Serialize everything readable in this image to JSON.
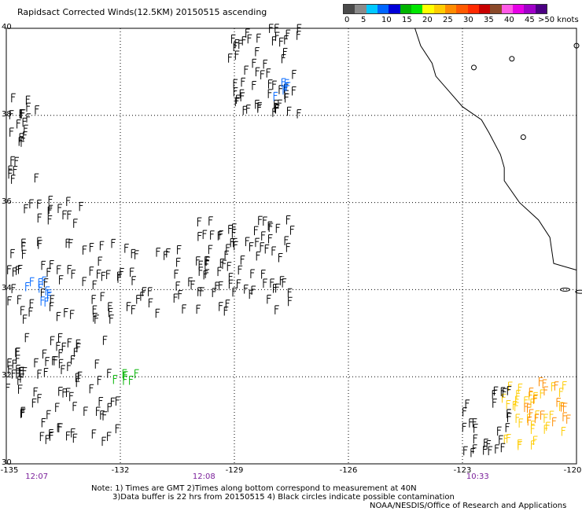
{
  "title": "Rapidsact Corrected Winds(12.5KM) 20150515 ascending",
  "legend": {
    "colors": [
      "#4a4a4a",
      "#8a8a8a",
      "#00c8ff",
      "#0066ff",
      "#0000d8",
      "#00b400",
      "#00e600",
      "#ffff00",
      "#ffcc00",
      "#ff8c00",
      "#ff5a00",
      "#ff2a00",
      "#c80000",
      "#8b4a2a",
      "#ff5ae6",
      "#e600e6",
      "#a000c8",
      "#4b0082"
    ],
    "ticks": [
      "0",
      "5",
      "10",
      "15",
      "20",
      "25",
      "30",
      "35",
      "40",
      "45",
      ">50 knots"
    ]
  },
  "lat_labels": [
    "40",
    "38",
    "36",
    "34",
    "32",
    "30"
  ],
  "lon_labels": [
    "-135",
    "-132",
    "-129",
    "-126",
    "-123",
    "-120"
  ],
  "times": [
    "12:07",
    "12:08",
    "10:33"
  ],
  "notes": [
    "Note: 1) Times are GMT 2)Times along bottom correspond to measurement at 40N",
    "3)Data buffer is 22 hrs from 20150515 4) Black circles indicate possible contamination",
    "NOAA/NESDIS/Office of Research and Applications"
  ],
  "map_data": {
    "lat_range": [
      30,
      40
    ],
    "lon_range": [
      -135,
      -120
    ],
    "wind_clusters": [
      {
        "color": "#000000",
        "lon": [
          -135,
          -134.2
        ],
        "lat": [
          36.4,
          38.4
        ]
      },
      {
        "color": "#000000",
        "lon": [
          -134.6,
          -133.0
        ],
        "lat": [
          35.4,
          36.0
        ]
      },
      {
        "color": "#000000",
        "lon": [
          -135,
          -130.0
        ],
        "lat": [
          33.2,
          35.0
        ]
      },
      {
        "color": "#000000",
        "lon": [
          -135,
          -132.0
        ],
        "lat": [
          30.4,
          32.8
        ]
      },
      {
        "color": "#000000",
        "lon": [
          -130.0,
          -127.5
        ],
        "lat": [
          33.4,
          35.5
        ]
      },
      {
        "color": "#000000",
        "lon": [
          -129.2,
          -127.3
        ],
        "lat": [
          37.9,
          39.9
        ]
      },
      {
        "color": "#0066ff",
        "lon": [
          -134.6,
          -133.8
        ],
        "lat": [
          33.4,
          34.2
        ]
      },
      {
        "color": "#0066ff",
        "lon": [
          -128.0,
          -127.6
        ],
        "lat": [
          38.2,
          38.8
        ]
      },
      {
        "color": "#00b400",
        "lon": [
          -132.2,
          -131.6
        ],
        "lat": [
          31.8,
          32.0
        ]
      },
      {
        "color": "#ffcc00",
        "lon": [
          -122.0,
          -120.3
        ],
        "lat": [
          30.3,
          31.7
        ]
      },
      {
        "color": "#ff8c00",
        "lon": [
          -121.4,
          -120.2
        ],
        "lat": [
          30.8,
          31.8
        ]
      },
      {
        "color": "#000000",
        "lon": [
          -123.0,
          -121.8
        ],
        "lat": [
          30.1,
          31.6
        ]
      }
    ]
  }
}
